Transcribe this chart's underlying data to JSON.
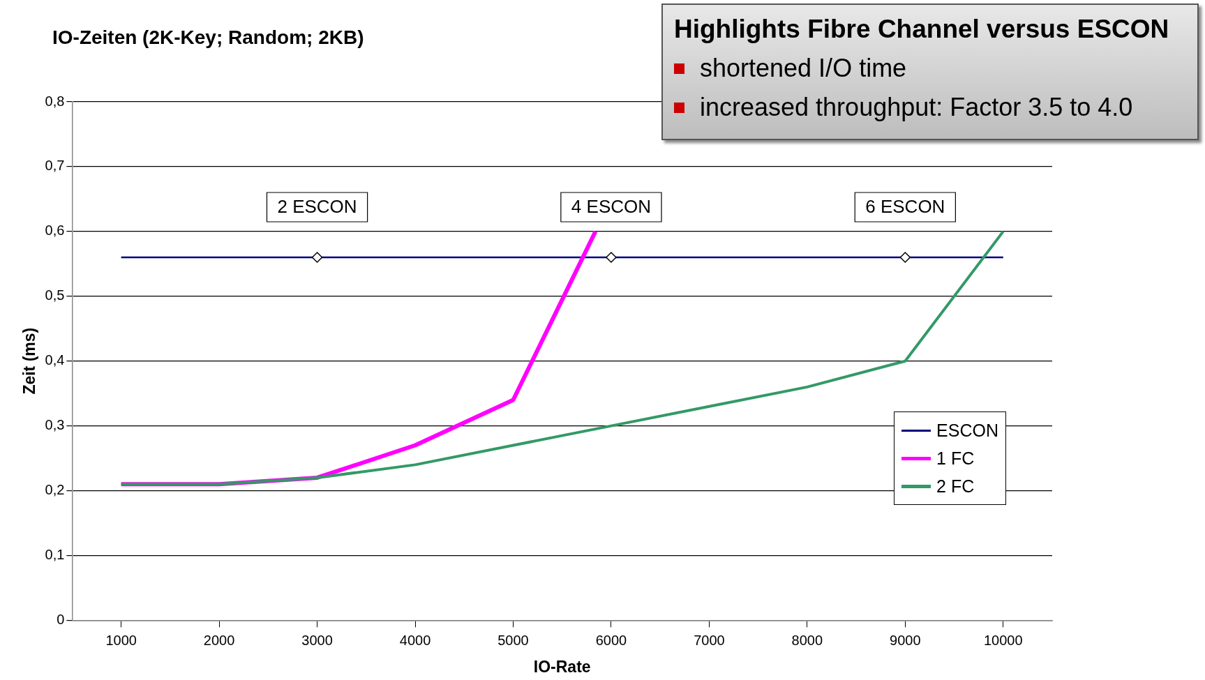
{
  "chart_data": {
    "type": "line",
    "title": "IO-Zeiten (2K-Key; Random; 2KB)",
    "xlabel": "IO-Rate",
    "ylabel": "Zeit (ms)",
    "xlim": [
      500,
      10500
    ],
    "xticks": [
      1000,
      2000,
      3000,
      4000,
      5000,
      6000,
      7000,
      8000,
      9000,
      10000
    ],
    "ylim": [
      0,
      0.8
    ],
    "yticks": [
      0,
      {
        "value": 0.1,
        "label": "0,1"
      },
      {
        "value": 0.2,
        "label": "0,2"
      },
      {
        "value": 0.3,
        "label": "0,3"
      },
      {
        "value": 0.4,
        "label": "0,4"
      },
      {
        "value": 0.5,
        "label": "0,5"
      },
      {
        "value": 0.6,
        "label": "0,6"
      },
      {
        "value": 0.7,
        "label": "0,7"
      },
      {
        "value": 0.8,
        "label": "0,8"
      }
    ],
    "grid": "y",
    "legend": "right",
    "marker": "none",
    "line_style": "solid",
    "series": [
      {
        "name": "ESCON",
        "color": "#000080",
        "x": [
          1000,
          10000
        ],
        "values": [
          0.56,
          0.56
        ]
      },
      {
        "name": "1 FC",
        "color": "#ff00ff",
        "x": [
          1000,
          2000,
          3000,
          4000,
          5000,
          5840
        ],
        "values": [
          0.21,
          0.21,
          0.22,
          0.27,
          0.34,
          0.6
        ]
      },
      {
        "name": "2 FC",
        "color": "#339966",
        "x": [
          1000,
          2000,
          3000,
          4000,
          5000,
          6000,
          7000,
          8000,
          9000,
          10000
        ],
        "values": [
          0.21,
          0.21,
          0.22,
          0.24,
          0.27,
          0.3,
          0.33,
          0.36,
          0.4,
          0.6
        ]
      },
      {
        "type": "scatter",
        "marker": "diamond",
        "color": "#000000",
        "x": [
          3000,
          6000,
          9000
        ],
        "values": [
          0.56,
          0.56,
          0.56
        ]
      }
    ],
    "annotations": [
      {
        "text": "2 ESCON",
        "x": 3000,
        "y": 0.56
      },
      {
        "text": "4 ESCON",
        "x": 6000,
        "y": 0.56
      },
      {
        "text": "6 ESCON",
        "x": 9000,
        "y": 0.56
      },
      "Highlights Fibre Channel versus ESCON",
      "shortened I/O time",
      "increased throughput: Factor 3.5 to 4.0"
    ]
  }
}
